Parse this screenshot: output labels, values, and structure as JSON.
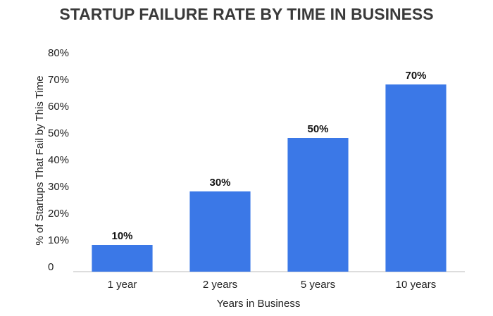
{
  "chart_data": {
    "type": "bar",
    "title": "STARTUP FAILURE RATE BY TIME IN BUSINESS",
    "x_label": "Years in Business",
    "y_label": "% of Startups That Fail by This Time",
    "categories": [
      "1 year",
      "2 years",
      "5 years",
      "10 years"
    ],
    "values": [
      10,
      30,
      50,
      70
    ],
    "value_labels": [
      "10%",
      "30%",
      "50%",
      "70%"
    ],
    "color": "#3b78e7",
    "ylim": [
      0,
      80
    ],
    "yticks": [
      0,
      {
        "value": 10,
        "label": "10%"
      },
      {
        "value": 20,
        "label": "20%"
      },
      {
        "value": 30,
        "label": "30%"
      },
      {
        "value": 40,
        "label": "40%"
      },
      {
        "value": 50,
        "label": "50%"
      },
      {
        "value": 60,
        "label": "60%"
      },
      {
        "value": 70,
        "label": "70%"
      },
      {
        "value": 80,
        "label": "80%"
      }
    ],
    "grid": false
  }
}
